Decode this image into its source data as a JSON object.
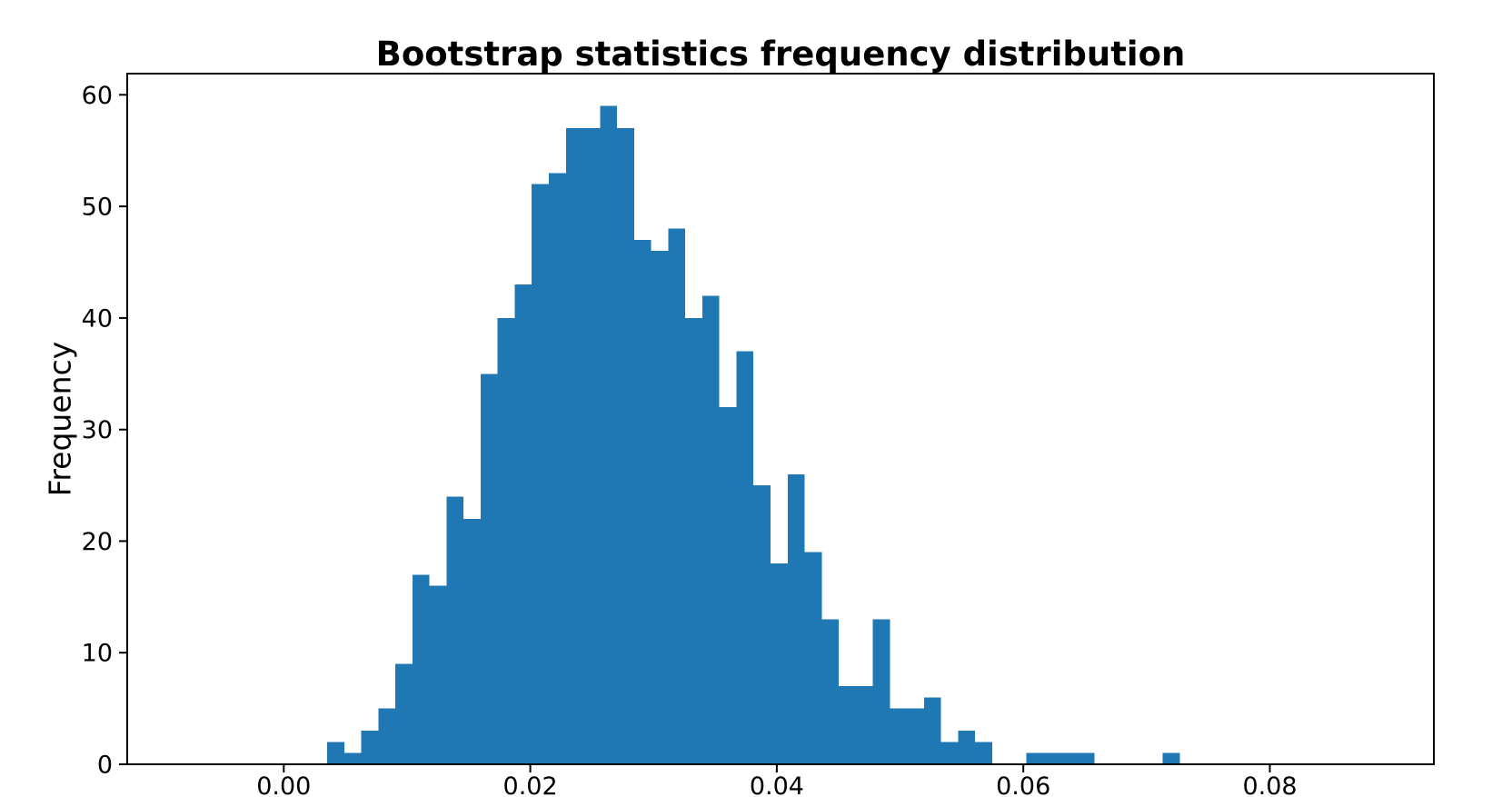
{
  "figure": {
    "background": "#ffffff",
    "text_color": "#000000"
  },
  "chart_data": {
    "type": "bar",
    "subtype": "histogram",
    "title": "Bootstrap statistics frequency distribution",
    "xlabel": "",
    "ylabel": "Frequency",
    "bar_color": "#1f77b4",
    "axis_color": "#000000",
    "grid": false,
    "bin_start": 0.00352,
    "bin_width": 0.0013836,
    "n_bins": 50,
    "frequencies": [
      2,
      1,
      3,
      5,
      9,
      17,
      16,
      24,
      22,
      35,
      40,
      43,
      52,
      53,
      57,
      57,
      59,
      57,
      47,
      46,
      48,
      40,
      42,
      32,
      37,
      25,
      18,
      26,
      19,
      13,
      7,
      7,
      13,
      5,
      5,
      6,
      2,
      3,
      2,
      0,
      0,
      1,
      1,
      1,
      1,
      0,
      0,
      0,
      0,
      1
    ],
    "x_ticks": {
      "values": [
        0.0,
        0.02,
        0.04,
        0.06,
        0.08
      ],
      "labels": [
        "0.00",
        "0.02",
        "0.04",
        "0.06",
        "0.08"
      ]
    },
    "y_ticks": {
      "values": [
        0,
        10,
        20,
        30,
        40,
        50,
        60
      ],
      "labels": [
        "0",
        "10",
        "20",
        "30",
        "40",
        "50",
        "60"
      ]
    },
    "xlim": [
      -0.0127,
      0.09331
    ],
    "ylim": [
      0,
      61.9
    ]
  }
}
